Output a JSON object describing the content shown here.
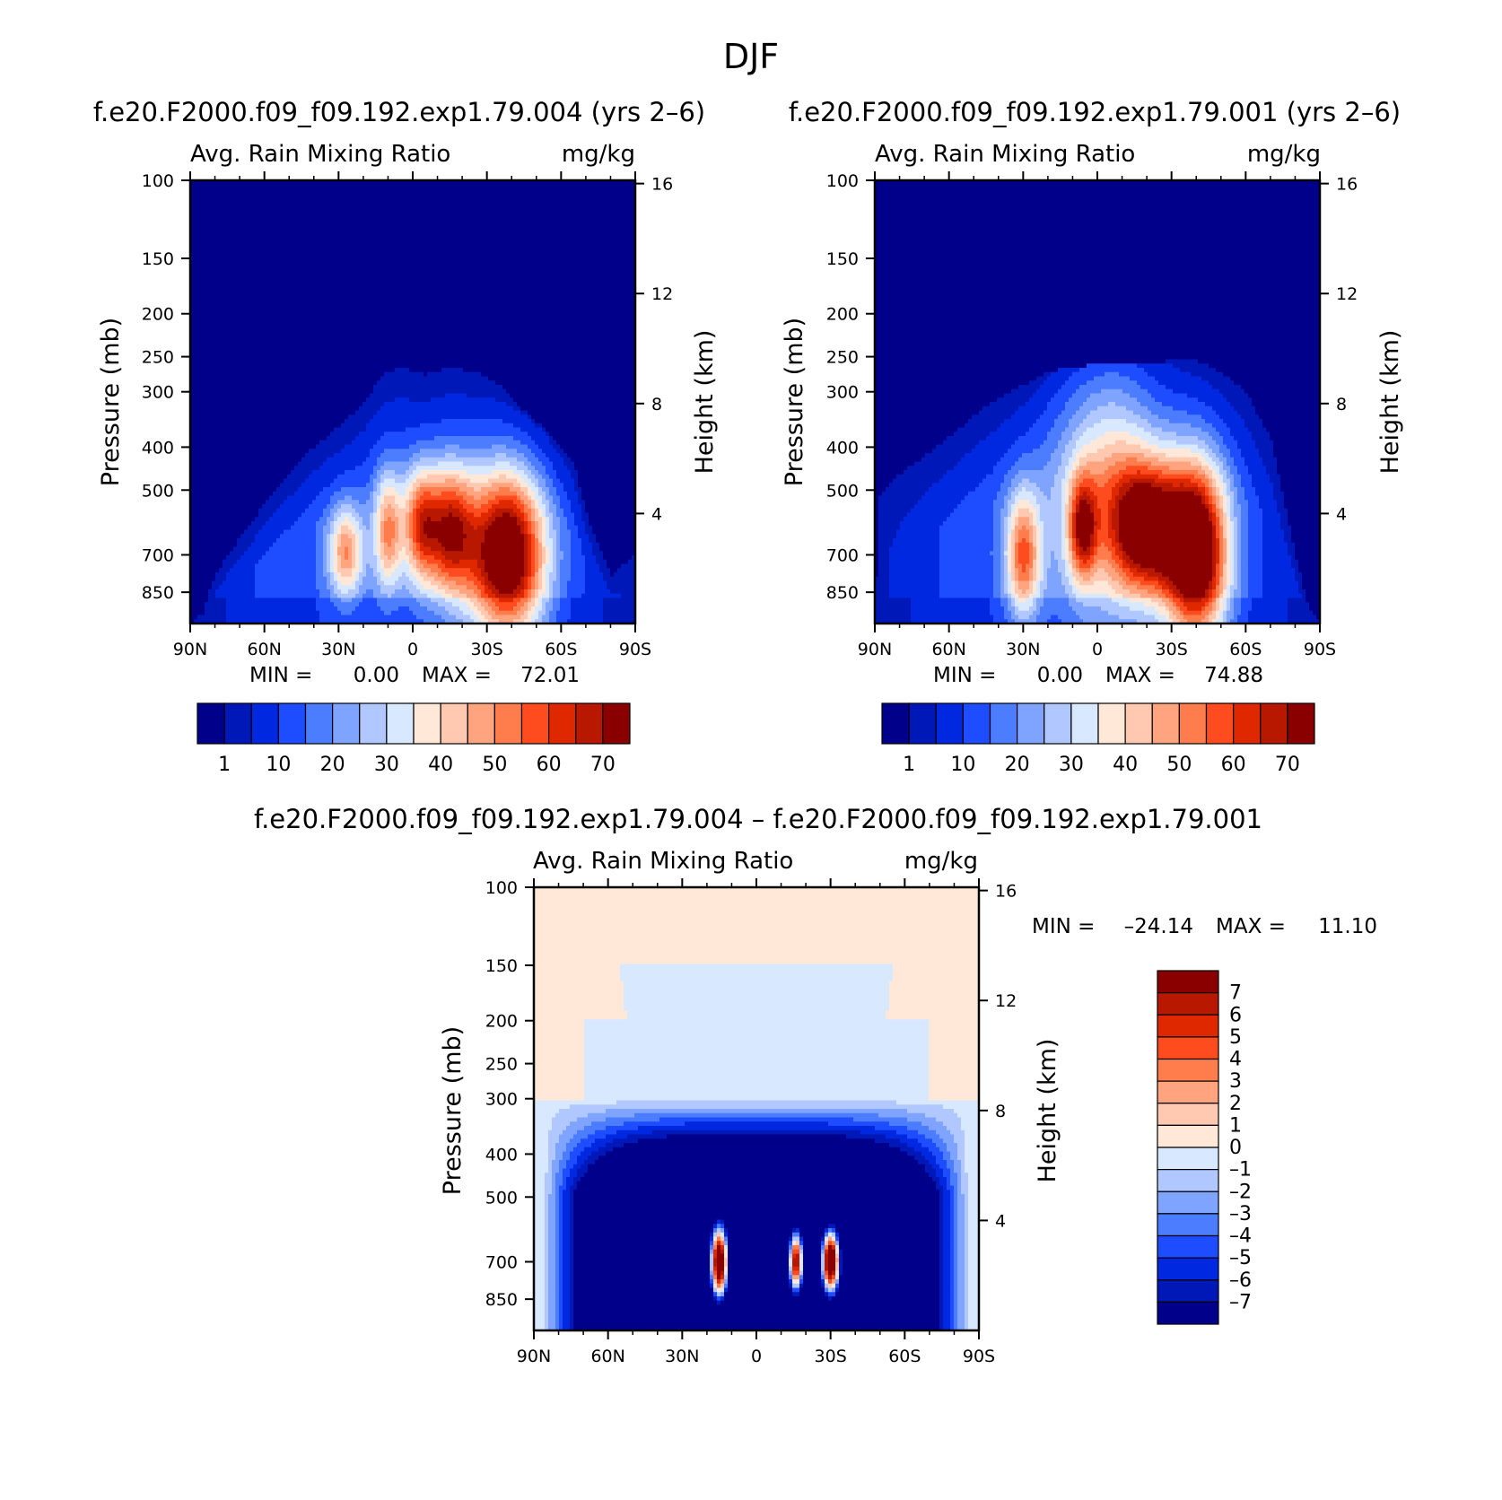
{
  "figure": {
    "title": "DJF"
  },
  "chart_data": [
    {
      "type": "heatmap",
      "title": "f.e20.F2000.f09_f09.192.exp1.79.004 (yrs 2–6)",
      "variable": "Avg. Rain Mixing Ratio",
      "units": "mg/kg",
      "xlabel": "",
      "ylabel": "Pressure (mb)",
      "ylabel_right": "Height (km)",
      "x_ticks": [
        "90N",
        "60N",
        "30N",
        "0",
        "30S",
        "60S",
        "90S"
      ],
      "x_range": [
        90,
        -90
      ],
      "y_ticks": [
        100,
        150,
        200,
        250,
        300,
        400,
        500,
        700,
        850
      ],
      "y_range": [
        100,
        1000
      ],
      "y_scale": "log",
      "height_ticks": [
        16,
        12,
        8,
        4
      ],
      "min_label": "MIN =",
      "min_value": "0.00",
      "max_label": "MAX =",
      "max_value": "72.01",
      "colorbar": {
        "orientation": "horizontal",
        "labels": [
          "1",
          "10",
          "20",
          "30",
          "40",
          "50",
          "60",
          "70"
        ],
        "colors": [
          "#00008a",
          "#0018b8",
          "#0028e0",
          "#1e4cff",
          "#4c7cff",
          "#7ea4ff",
          "#b0c8ff",
          "#d8e8ff",
          "#ffe8d8",
          "#ffc8b0",
          "#ffa47e",
          "#ff7c4c",
          "#ff4c1e",
          "#e02800",
          "#b81800",
          "#8a0000"
        ]
      },
      "features": [
        {
          "lat": -38,
          "p": 700,
          "peak": 72,
          "w_lat": 11,
          "w_lp": 0.13
        },
        {
          "lat": -15,
          "p": 620,
          "peak": 50,
          "w_lat": 7,
          "w_lp": 0.1
        },
        {
          "lat": -3,
          "p": 600,
          "peak": 40,
          "w_lat": 5,
          "w_lp": 0.09
        },
        {
          "lat": 10,
          "p": 620,
          "peak": 36,
          "w_lat": 4,
          "w_lp": 0.09
        },
        {
          "lat": 27,
          "p": 690,
          "peak": 36,
          "w_lat": 5,
          "w_lp": 0.07
        }
      ],
      "cloud_top_hpa": [
        [
          90,
          1000
        ],
        [
          85,
          950
        ],
        [
          80,
          780
        ],
        [
          70,
          640
        ],
        [
          60,
          540
        ],
        [
          50,
          460
        ],
        [
          40,
          400
        ],
        [
          30,
          360
        ],
        [
          20,
          320
        ],
        [
          12,
          275
        ],
        [
          5,
          265
        ],
        [
          -5,
          275
        ],
        [
          -15,
          265
        ],
        [
          -25,
          270
        ],
        [
          -35,
          290
        ],
        [
          -45,
          330
        ],
        [
          -55,
          370
        ],
        [
          -65,
          430
        ],
        [
          -70,
          560
        ],
        [
          -80,
          780
        ],
        [
          -90,
          700
        ]
      ]
    },
    {
      "type": "heatmap",
      "title": "f.e20.F2000.f09_f09.192.exp1.79.001 (yrs 2–6)",
      "variable": "Avg. Rain Mixing Ratio",
      "units": "mg/kg",
      "xlabel": "",
      "ylabel": "Pressure (mb)",
      "ylabel_right": "Height (km)",
      "x_ticks": [
        "90N",
        "60N",
        "30N",
        "0",
        "30S",
        "60S",
        "90S"
      ],
      "x_range": [
        90,
        -90
      ],
      "y_ticks": [
        100,
        150,
        200,
        250,
        300,
        400,
        500,
        700,
        850
      ],
      "y_range": [
        100,
        1000
      ],
      "y_scale": "log",
      "height_ticks": [
        16,
        12,
        8,
        4
      ],
      "min_label": "MIN =",
      "min_value": "0.00",
      "max_label": "MAX =",
      "max_value": "74.88",
      "colorbar": {
        "orientation": "horizontal",
        "labels": [
          "1",
          "10",
          "20",
          "30",
          "40",
          "50",
          "60",
          "70"
        ],
        "colors": [
          "#00008a",
          "#0018b8",
          "#0028e0",
          "#1e4cff",
          "#4c7cff",
          "#7ea4ff",
          "#b0c8ff",
          "#d8e8ff",
          "#ffe8d8",
          "#ffc8b0",
          "#ffa47e",
          "#ff7c4c",
          "#ff4c1e",
          "#e02800",
          "#b81800",
          "#8a0000"
        ]
      },
      "features": [
        {
          "lat": -40,
          "p": 690,
          "peak": 75,
          "w_lat": 9,
          "w_lp": 0.14
        },
        {
          "lat": -20,
          "p": 610,
          "peak": 55,
          "w_lat": 10,
          "w_lp": 0.1
        },
        {
          "lat": 6,
          "p": 610,
          "peak": 42,
          "w_lat": 4,
          "w_lp": 0.08
        },
        {
          "lat": 30,
          "p": 700,
          "peak": 42,
          "w_lat": 5,
          "w_lp": 0.1
        },
        {
          "lat": -5,
          "p": 500,
          "peak": 30,
          "w_lat": 15,
          "w_lp": 0.2
        }
      ],
      "cloud_top_hpa": [
        [
          90,
          1000
        ],
        [
          88,
          520
        ],
        [
          80,
          460
        ],
        [
          70,
          420
        ],
        [
          60,
          380
        ],
        [
          50,
          340
        ],
        [
          40,
          310
        ],
        [
          30,
          290
        ],
        [
          20,
          270
        ],
        [
          10,
          265
        ],
        [
          0,
          260
        ],
        [
          -10,
          258
        ],
        [
          -20,
          260
        ],
        [
          -30,
          255
        ],
        [
          -40,
          255
        ],
        [
          -50,
          270
        ],
        [
          -60,
          300
        ],
        [
          -70,
          380
        ],
        [
          -78,
          620
        ],
        [
          -85,
          900
        ],
        [
          -90,
          1000
        ]
      ]
    },
    {
      "type": "heatmap",
      "title": "f.e20.F2000.f09_f09.192.exp1.79.004 – f.e20.F2000.f09_f09.192.exp1.79.001",
      "variable": "Avg. Rain Mixing Ratio",
      "units": "mg/kg",
      "xlabel": "",
      "ylabel": "Pressure (mb)",
      "ylabel_right": "Height (km)",
      "x_ticks": [
        "90N",
        "60N",
        "30N",
        "0",
        "30S",
        "60S",
        "90S"
      ],
      "x_range": [
        90,
        -90
      ],
      "y_ticks": [
        100,
        150,
        200,
        250,
        300,
        400,
        500,
        700,
        850
      ],
      "y_range": [
        100,
        1000
      ],
      "y_scale": "log",
      "height_ticks": [
        16,
        12,
        8,
        4
      ],
      "min_label": "MIN =",
      "min_value": "–24.14",
      "max_label": "MAX =",
      "max_value": "11.10",
      "colorbar": {
        "orientation": "vertical",
        "labels": [
          "7",
          "6",
          "5",
          "4",
          "3",
          "2",
          "1",
          "0",
          "–1",
          "–2",
          "–3",
          "–4",
          "–5",
          "–6",
          "–7"
        ],
        "colors": [
          "#8a0000",
          "#b81800",
          "#e02800",
          "#ff4c1e",
          "#ff7c4c",
          "#ffa47e",
          "#ffc8b0",
          "#ffe8d8",
          "#d8e8ff",
          "#b0c8ff",
          "#7ea4ff",
          "#4c7cff",
          "#1e4cff",
          "#0028e0",
          "#0018b8",
          "#00008a"
        ]
      },
      "features": [
        {
          "lat": 15,
          "p": 700,
          "peak": 11,
          "w_lat": 3,
          "w_lp": 0.07
        },
        {
          "lat": -16,
          "p": 700,
          "peak": 8,
          "w_lat": 2.5,
          "w_lp": 0.06
        },
        {
          "lat": -30,
          "p": 700,
          "peak": 11,
          "w_lat": 3,
          "w_lp": 0.06
        }
      ]
    }
  ]
}
